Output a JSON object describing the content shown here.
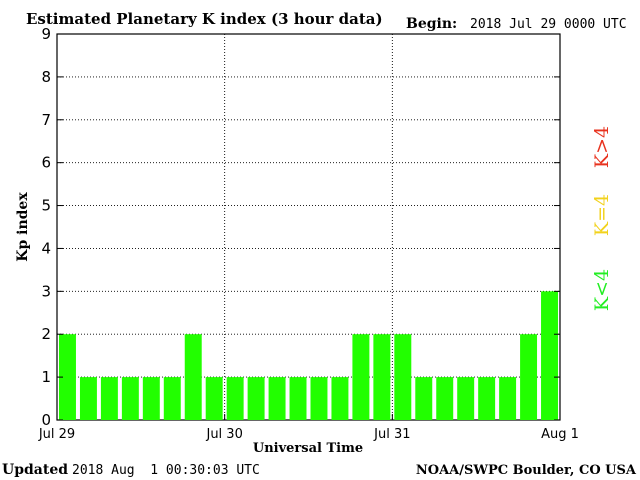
{
  "header": {
    "title": "Estimated Planetary K index (3 hour data)",
    "begin_label": "Begin:",
    "begin_value": "2018 Jul 29 0000 UTC"
  },
  "footer": {
    "updated_label": "Updated",
    "updated_value": "2018 Aug  1 00:30:03 UTC",
    "source": "NOAA/SWPC Boulder, CO USA"
  },
  "legend": [
    {
      "label": "K<4",
      "color": "#22ee22"
    },
    {
      "label": "K=4",
      "color": "#f2d21c"
    },
    {
      "label": "K>4",
      "color": "#e8321e"
    }
  ],
  "chart_data": {
    "type": "bar",
    "title": "Estimated Planetary K index (3 hour data)",
    "xlabel": "Universal Time",
    "ylabel": "Kp index",
    "ylim": [
      0,
      9
    ],
    "yticks": [
      0,
      1,
      2,
      3,
      4,
      5,
      6,
      7,
      8,
      9
    ],
    "day_labels": [
      "Jul 29",
      "Jul 30",
      "Jul 31",
      "Aug 1"
    ],
    "bars_per_day": 8,
    "values": [
      2,
      1,
      1,
      1,
      1,
      1,
      2,
      1,
      1,
      1,
      1,
      1,
      1,
      1,
      2,
      2,
      2,
      1,
      1,
      1,
      1,
      1,
      2,
      3
    ],
    "bar_color": "#22ff00",
    "grid": "dotted"
  }
}
